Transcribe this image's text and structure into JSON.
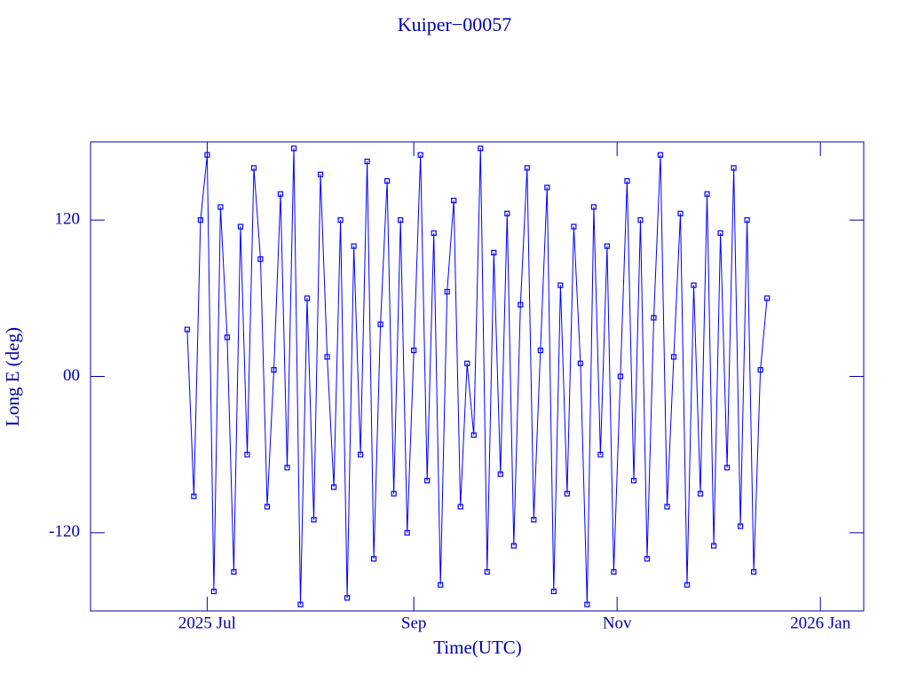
{
  "chart_data": {
    "type": "line",
    "title": "Kuiper−00057",
    "xlabel": "Time(UTC)",
    "ylabel": "Long E (deg)",
    "color": "#0000ff",
    "axis_color": "#0000aa",
    "xlim": [
      "2025-05-27",
      "2026-01-14"
    ],
    "xticks": [
      {
        "value": "2025-07-01",
        "label": "2025 Jul"
      },
      {
        "value": "2025-09-01",
        "label": "Sep"
      },
      {
        "value": "2025-11-01",
        "label": "Nov"
      },
      {
        "value": "2026-01-01",
        "label": "2026 Jan"
      }
    ],
    "ylim": [
      -180,
      180
    ],
    "yticks": [
      -120,
      {
        "value": 0,
        "label": "00"
      },
      120
    ],
    "x": [
      "2025-06-25",
      "2025-06-27",
      "2025-06-29",
      "2025-07-01",
      "2025-07-03",
      "2025-07-05",
      "2025-07-07",
      "2025-07-09",
      "2025-07-11",
      "2025-07-13",
      "2025-07-15",
      "2025-07-17",
      "2025-07-19",
      "2025-07-21",
      "2025-07-23",
      "2025-07-25",
      "2025-07-27",
      "2025-07-29",
      "2025-07-31",
      "2025-08-02",
      "2025-08-04",
      "2025-08-06",
      "2025-08-08",
      "2025-08-10",
      "2025-08-12",
      "2025-08-14",
      "2025-08-16",
      "2025-08-18",
      "2025-08-20",
      "2025-08-22",
      "2025-08-24",
      "2025-08-26",
      "2025-08-28",
      "2025-08-30",
      "2025-09-01",
      "2025-09-03",
      "2025-09-05",
      "2025-09-07",
      "2025-09-09",
      "2025-09-11",
      "2025-09-13",
      "2025-09-15",
      "2025-09-17",
      "2025-09-19",
      "2025-09-21",
      "2025-09-23",
      "2025-09-25",
      "2025-09-27",
      "2025-09-29",
      "2025-10-01",
      "2025-10-03",
      "2025-10-05",
      "2025-10-07",
      "2025-10-09",
      "2025-10-11",
      "2025-10-13",
      "2025-10-15",
      "2025-10-17",
      "2025-10-19",
      "2025-10-21",
      "2025-10-23",
      "2025-10-25",
      "2025-10-27",
      "2025-10-29",
      "2025-10-31",
      "2025-11-02",
      "2025-11-04",
      "2025-11-06",
      "2025-11-08",
      "2025-11-10",
      "2025-11-12",
      "2025-11-14",
      "2025-11-16",
      "2025-11-18",
      "2025-11-20",
      "2025-11-22",
      "2025-11-24",
      "2025-11-26",
      "2025-11-28",
      "2025-11-30",
      "2025-12-02",
      "2025-12-04",
      "2025-12-06",
      "2025-12-08",
      "2025-12-10",
      "2025-12-12",
      "2025-12-14",
      "2025-12-16"
    ],
    "values": [
      36,
      -92,
      120,
      170,
      -165,
      130,
      30,
      -150,
      115,
      -60,
      160,
      90,
      -100,
      5,
      140,
      -70,
      175,
      -175,
      60,
      -110,
      155,
      15,
      -85,
      120,
      -170,
      100,
      -60,
      165,
      -140,
      40,
      150,
      -90,
      120,
      -120,
      20,
      170,
      -80,
      110,
      -160,
      65,
      135,
      -100,
      10,
      -45,
      175,
      -150,
      95,
      -75,
      125,
      -130,
      55,
      160,
      -110,
      20,
      145,
      -165,
      70,
      -90,
      115,
      10,
      -175,
      130,
      -60,
      100,
      -150,
      0,
      150,
      -80,
      120,
      -140,
      45,
      170,
      -100,
      15,
      125,
      -160,
      70,
      -90,
      140,
      -130,
      110,
      -70,
      160,
      -115,
      120,
      -150,
      5,
      60
    ]
  }
}
